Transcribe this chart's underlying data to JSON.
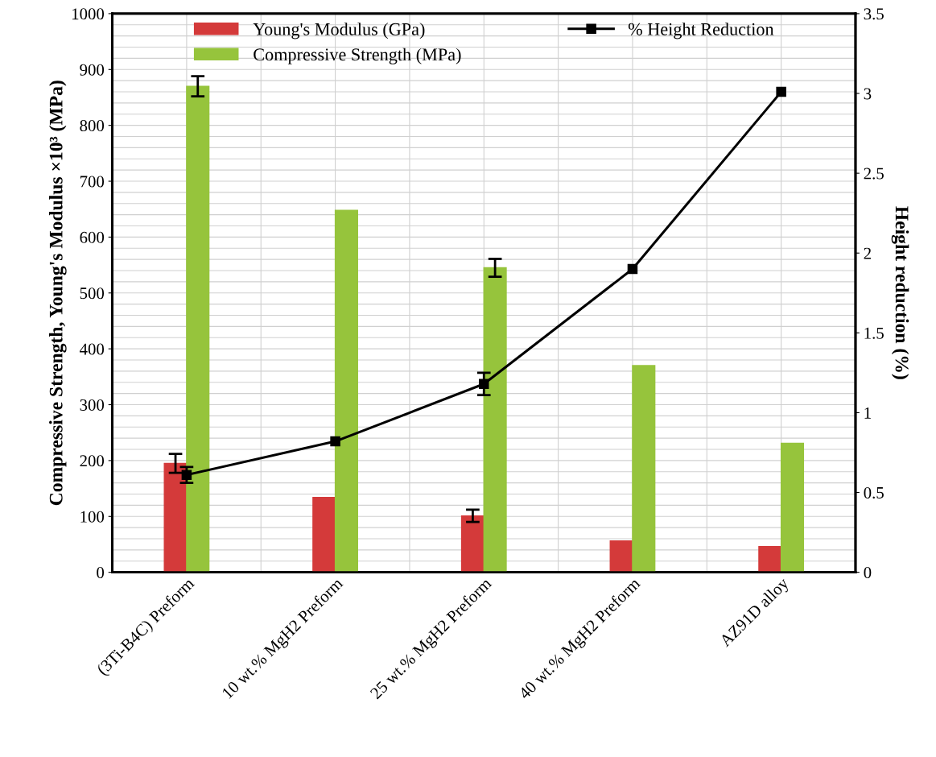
{
  "chart_data": {
    "type": "bar",
    "categories": [
      "(3Ti-B4C) Preform",
      "10 wt.% MgH2 Preform",
      "25 wt.% MgH2 Preform",
      "40 wt.% MgH2 Preform",
      "AZ91D alloy"
    ],
    "series": [
      {
        "name": "Young's Modulus (GPa)",
        "color": "#d43a3a",
        "values": [
          195,
          134,
          101,
          56,
          46
        ],
        "errors": [
          17,
          null,
          11,
          null,
          null
        ]
      },
      {
        "name": "Compressive Strength (MPa)",
        "color": "#96c43c",
        "values": [
          870,
          648,
          545,
          370,
          231
        ],
        "errors": [
          18,
          null,
          16,
          null,
          null
        ]
      },
      {
        "name": "% Height Reduction",
        "type": "line",
        "axis": "y2",
        "color": "#000000",
        "marker": "square",
        "values": [
          0.61,
          0.82,
          1.18,
          1.9,
          3.01
        ],
        "errors": [
          0.05,
          null,
          0.07,
          null,
          null
        ]
      }
    ],
    "ylabel": "Compressive Strength, Young's Modulus ×10³ (MPa)",
    "y2label": "Height reduction (%)",
    "ylim": [
      0,
      1000
    ],
    "yticks": [
      0,
      100,
      200,
      300,
      400,
      500,
      600,
      700,
      800,
      900,
      1000
    ],
    "y2lim": [
      0,
      3.5
    ],
    "y2ticks": [
      0,
      0.5,
      1,
      1.5,
      2,
      2.5,
      3,
      3.5
    ],
    "grid": true,
    "legend": "top"
  }
}
